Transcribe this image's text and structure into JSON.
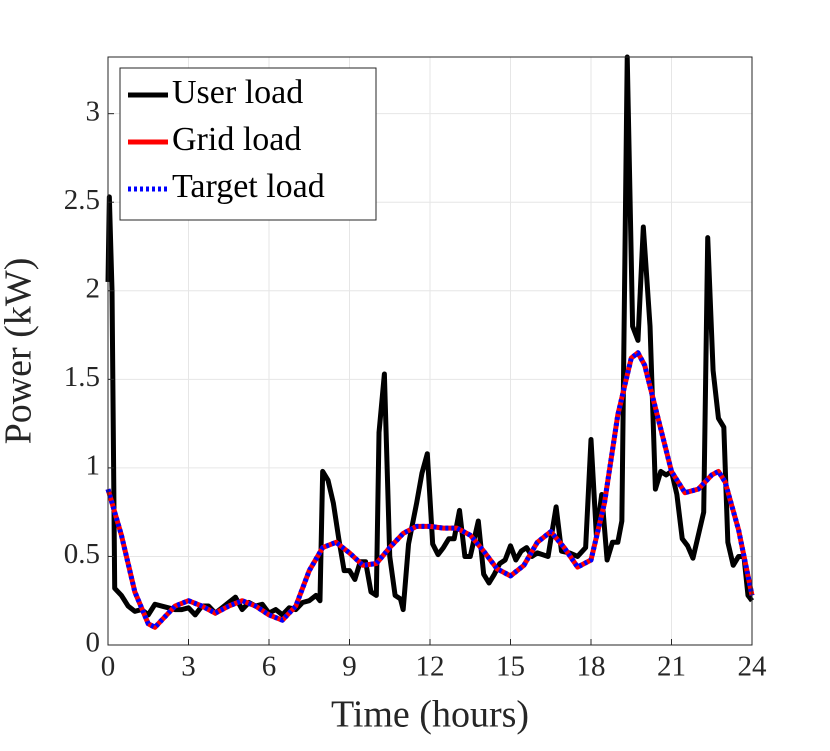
{
  "chart_data": {
    "type": "line",
    "xlabel": "Time (hours)",
    "ylabel": "Power (kW)",
    "xlim": [
      0,
      24
    ],
    "xticks": [
      0,
      3,
      6,
      9,
      12,
      15,
      18,
      21,
      24
    ],
    "ylim": [
      0,
      3.32
    ],
    "yticks": [
      0,
      0.5,
      1,
      1.5,
      2,
      2.5,
      3
    ],
    "grid": true,
    "legend": "upper left",
    "series": [
      {
        "name": "User load",
        "color": "#000000",
        "style": "solid",
        "x": [
          0,
          0.05,
          0.15,
          0.25,
          0.5,
          0.75,
          1,
          1.25,
          1.5,
          1.75,
          2,
          2.25,
          2.5,
          2.75,
          3,
          3.25,
          3.5,
          3.75,
          4,
          4.25,
          4.5,
          4.75,
          5,
          5.25,
          5.5,
          5.75,
          6,
          6.25,
          6.5,
          6.75,
          7,
          7.25,
          7.5,
          7.75,
          7.9,
          8,
          8.2,
          8.4,
          8.6,
          8.8,
          9,
          9.2,
          9.4,
          9.6,
          9.8,
          10,
          10.1,
          10.3,
          10.5,
          10.7,
          10.9,
          11,
          11.2,
          11.5,
          11.7,
          11.9,
          12.1,
          12.3,
          12.5,
          12.7,
          12.9,
          13.1,
          13.3,
          13.5,
          13.8,
          14,
          14.2,
          14.4,
          14.6,
          14.8,
          15,
          15.2,
          15.4,
          15.6,
          15.8,
          16,
          16.4,
          16.7,
          16.9,
          17.2,
          17.5,
          17.8,
          18,
          18.2,
          18.4,
          18.6,
          18.8,
          19,
          19.15,
          19.35,
          19.55,
          19.75,
          19.95,
          20.2,
          20.4,
          20.6,
          20.8,
          21,
          21.2,
          21.4,
          21.6,
          21.8,
          22,
          22.2,
          22.35,
          22.55,
          22.75,
          22.95,
          23.1,
          23.3,
          23.5,
          23.7,
          23.85,
          24
        ],
        "values": [
          2.05,
          2.53,
          2.0,
          0.32,
          0.28,
          0.22,
          0.19,
          0.2,
          0.17,
          0.23,
          0.22,
          0.21,
          0.2,
          0.2,
          0.21,
          0.17,
          0.22,
          0.22,
          0.18,
          0.21,
          0.24,
          0.27,
          0.2,
          0.24,
          0.22,
          0.23,
          0.18,
          0.2,
          0.17,
          0.21,
          0.2,
          0.24,
          0.25,
          0.28,
          0.25,
          0.98,
          0.93,
          0.8,
          0.6,
          0.42,
          0.42,
          0.37,
          0.47,
          0.47,
          0.3,
          0.28,
          1.2,
          1.53,
          0.5,
          0.28,
          0.26,
          0.2,
          0.57,
          0.8,
          0.97,
          1.08,
          0.57,
          0.51,
          0.55,
          0.6,
          0.6,
          0.76,
          0.5,
          0.5,
          0.7,
          0.4,
          0.35,
          0.4,
          0.46,
          0.48,
          0.56,
          0.48,
          0.53,
          0.55,
          0.5,
          0.52,
          0.5,
          0.78,
          0.53,
          0.52,
          0.5,
          0.55,
          1.16,
          0.62,
          0.85,
          0.48,
          0.58,
          0.58,
          0.7,
          3.32,
          1.8,
          1.72,
          2.36,
          1.8,
          0.88,
          0.98,
          0.96,
          0.98,
          0.85,
          0.6,
          0.56,
          0.49,
          0.62,
          0.75,
          2.3,
          1.55,
          1.28,
          1.23,
          0.58,
          0.45,
          0.5,
          0.5,
          0.28,
          0.25
        ]
      },
      {
        "name": "Grid load",
        "color": "#ff0000",
        "style": "solid",
        "x": [
          0,
          0.5,
          1,
          1.5,
          1.75,
          2,
          2.5,
          3,
          3.5,
          4,
          4.5,
          5,
          5.5,
          6,
          6.5,
          7,
          7.5,
          8,
          8.5,
          9,
          9.5,
          10,
          10.5,
          11,
          11.5,
          12,
          12.5,
          13,
          13.5,
          14,
          14.5,
          15,
          15.5,
          16,
          16.5,
          17,
          17.5,
          18,
          18.5,
          19,
          19.5,
          19.75,
          20,
          20.5,
          21,
          21.5,
          22,
          22.5,
          22.75,
          23,
          23.5,
          24
        ],
        "values": [
          0.88,
          0.62,
          0.3,
          0.12,
          0.1,
          0.14,
          0.22,
          0.25,
          0.22,
          0.18,
          0.22,
          0.25,
          0.22,
          0.17,
          0.14,
          0.22,
          0.42,
          0.55,
          0.58,
          0.52,
          0.45,
          0.46,
          0.55,
          0.63,
          0.67,
          0.67,
          0.66,
          0.66,
          0.62,
          0.53,
          0.43,
          0.39,
          0.45,
          0.58,
          0.64,
          0.55,
          0.44,
          0.48,
          0.8,
          1.3,
          1.62,
          1.65,
          1.58,
          1.28,
          0.98,
          0.86,
          0.88,
          0.96,
          0.98,
          0.92,
          0.65,
          0.28
        ]
      },
      {
        "name": "Target load",
        "color": "#0000ff",
        "style": "dotted",
        "x": [
          0,
          0.5,
          1,
          1.5,
          1.75,
          2,
          2.5,
          3,
          3.5,
          4,
          4.5,
          5,
          5.5,
          6,
          6.5,
          7,
          7.5,
          8,
          8.5,
          9,
          9.5,
          10,
          10.5,
          11,
          11.5,
          12,
          12.5,
          13,
          13.5,
          14,
          14.5,
          15,
          15.5,
          16,
          16.5,
          17,
          17.5,
          18,
          18.5,
          19,
          19.5,
          19.75,
          20,
          20.5,
          21,
          21.5,
          22,
          22.5,
          22.75,
          23,
          23.5,
          24
        ],
        "values": [
          0.88,
          0.62,
          0.3,
          0.12,
          0.1,
          0.14,
          0.22,
          0.25,
          0.22,
          0.18,
          0.22,
          0.25,
          0.22,
          0.17,
          0.14,
          0.22,
          0.42,
          0.55,
          0.58,
          0.52,
          0.45,
          0.46,
          0.55,
          0.63,
          0.67,
          0.67,
          0.66,
          0.66,
          0.62,
          0.53,
          0.43,
          0.39,
          0.45,
          0.58,
          0.64,
          0.55,
          0.44,
          0.48,
          0.8,
          1.3,
          1.62,
          1.65,
          1.58,
          1.28,
          0.98,
          0.86,
          0.88,
          0.96,
          0.98,
          0.92,
          0.65,
          0.28
        ]
      }
    ]
  }
}
